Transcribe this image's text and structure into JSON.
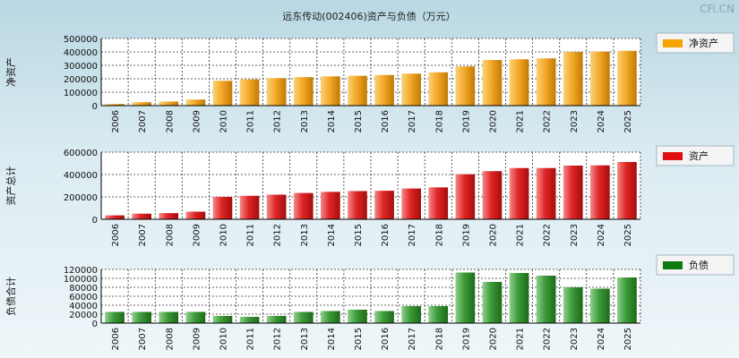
{
  "title": "远东传动(002406)资产与负债（万元）",
  "watermark": "CFi.CN",
  "colors": {
    "net_assets": "#f5a400",
    "assets": "#e01010",
    "liabilities": "#0d7a12",
    "grid": "#333333"
  },
  "chart_data": [
    {
      "type": "bar",
      "ylabel": "净资产",
      "legend": "净资产",
      "legend_position": "right",
      "grid": true,
      "ylim": [
        0,
        500000
      ],
      "yticks": [
        "500000",
        "400000",
        "300000",
        "200000",
        "100000",
        "0"
      ],
      "categories": [
        "2006",
        "2007",
        "2008",
        "2009",
        "2010",
        "2011",
        "2012",
        "2013",
        "2014",
        "2015",
        "2016",
        "2017",
        "2018",
        "2019",
        "2020",
        "2021",
        "2022",
        "2023",
        "2024",
        "2025"
      ],
      "values": [
        12000,
        25000,
        30000,
        45000,
        185000,
        195000,
        205000,
        212000,
        218000,
        222000,
        228000,
        238000,
        248000,
        292000,
        340000,
        345000,
        352000,
        400000,
        402000,
        408000
      ]
    },
    {
      "type": "bar",
      "ylabel": "资产总计",
      "legend": "资产",
      "legend_position": "right",
      "grid": true,
      "ylim": [
        0,
        600000
      ],
      "yticks": [
        "600000",
        "400000",
        "200000",
        "0"
      ],
      "categories": [
        "2006",
        "2007",
        "2008",
        "2009",
        "2010",
        "2011",
        "2012",
        "2013",
        "2014",
        "2015",
        "2016",
        "2017",
        "2018",
        "2019",
        "2020",
        "2021",
        "2022",
        "2023",
        "2024",
        "2025"
      ],
      "values": [
        35000,
        50000,
        55000,
        68000,
        200000,
        210000,
        220000,
        235000,
        245000,
        252000,
        255000,
        275000,
        285000,
        402000,
        430000,
        458000,
        458000,
        480000,
        482000,
        512000
      ]
    },
    {
      "type": "bar",
      "ylabel": "负债合计",
      "legend": "负债",
      "legend_position": "right",
      "grid": true,
      "ylim": [
        0,
        120000
      ],
      "yticks": [
        "120000",
        "100000",
        "80000",
        "60000",
        "40000",
        "20000",
        "0"
      ],
      "categories": [
        "2006",
        "2007",
        "2008",
        "2009",
        "2010",
        "2011",
        "2012",
        "2013",
        "2014",
        "2015",
        "2016",
        "2017",
        "2018",
        "2019",
        "2020",
        "2021",
        "2022",
        "2023",
        "2024",
        "2025"
      ],
      "values": [
        25000,
        25000,
        25000,
        25000,
        16000,
        14000,
        16000,
        25000,
        27000,
        30000,
        27000,
        38000,
        38000,
        113000,
        92000,
        112000,
        106000,
        80000,
        77000,
        102000
      ]
    }
  ]
}
